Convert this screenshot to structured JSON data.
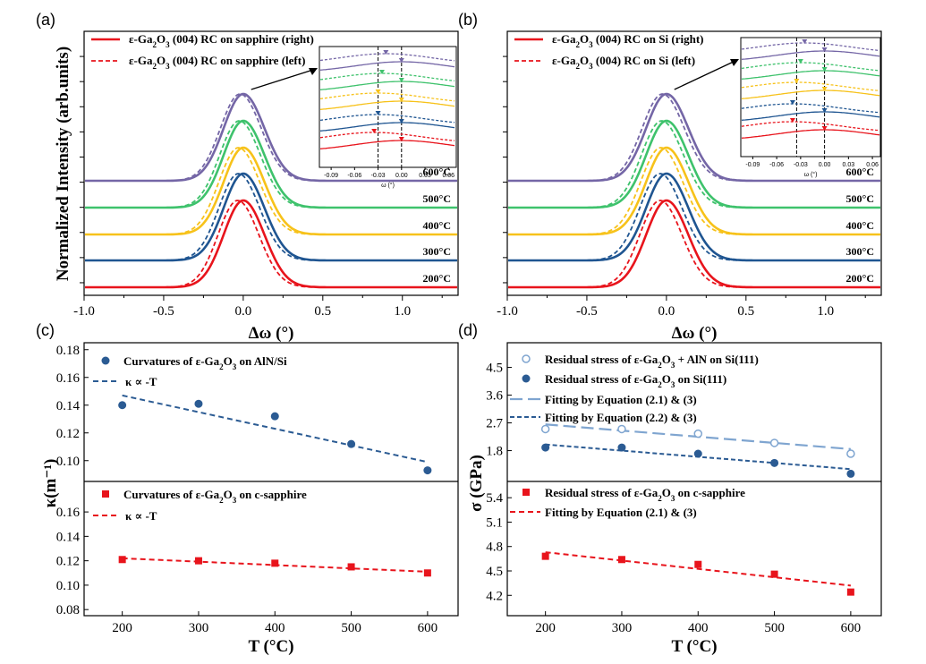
{
  "panel_labels": [
    "(a)",
    "(b)",
    "(c)",
    "(d)"
  ],
  "colors": {
    "200": "#e8141c",
    "300": "#1f5591",
    "400": "#f7c21a",
    "500": "#3ec26c",
    "600": "#7466a6",
    "blue_pts": "#2b5b93",
    "light_blue": "#7fa5d0",
    "red_pts": "#e8141c"
  },
  "chart_data": [
    {
      "panel": "(a)",
      "type": "line",
      "xlabel": "Δω (°)",
      "ylabel": "Normalized Intensity (arb.units)",
      "xlim": [
        -1.0,
        1.35
      ],
      "xticks": [
        "-1.0",
        "-0.5",
        "0.0",
        "0.5",
        "1.0"
      ],
      "legend": [
        "ε-Ga2O3 (004) RC on sapphire (right)",
        "ε-Ga2O3 (004) RC on sapphire (left)"
      ],
      "series_labels": [
        "200°C",
        "300°C",
        "400°C",
        "500°C",
        "600°C"
      ],
      "fwhm": 0.29,
      "left_shifts": [
        -0.035,
        -0.03,
        -0.03,
        -0.025,
        -0.02
      ],
      "inset": {
        "xlabel": "ω (°)",
        "xticks": [
          "-0.09",
          "-0.06",
          "-0.03",
          "0.00",
          "0.03",
          "0.06"
        ],
        "dashed_line_x": [
          -0.03,
          0.0
        ]
      }
    },
    {
      "panel": "(b)",
      "type": "line",
      "xlabel": "Δω (°)",
      "xlim": [
        -1.0,
        1.35
      ],
      "xticks": [
        "-1.0",
        "-0.5",
        "0.0",
        "0.5",
        "1.0"
      ],
      "legend": [
        "ε-Ga2O3 (004) RC on Si (right)",
        "ε-Ga2O3 (004) RC on Si (left)"
      ],
      "series_labels": [
        "200°C",
        "300°C",
        "400°C",
        "500°C",
        "600°C"
      ],
      "fwhm": 0.3,
      "left_shifts": [
        -0.04,
        -0.04,
        -0.035,
        -0.03,
        -0.025
      ],
      "inset": {
        "xlabel": "ω (°)",
        "xticks": [
          "-0.09",
          "-0.06",
          "-0.03",
          "0.00",
          "0.03",
          "0.06"
        ],
        "dashed_line_x": [
          -0.035,
          0.0
        ]
      }
    },
    {
      "panel": "(c)",
      "type": "scatter",
      "xlabel": "T (°C)",
      "ylabel": "κ(m⁻¹)",
      "xlim": [
        150,
        640
      ],
      "xticks": [
        200,
        300,
        400,
        500,
        600
      ],
      "top": {
        "ylim": [
          0.085,
          0.185
        ],
        "yticks": [
          "0.10",
          "0.12",
          "0.14",
          "0.16",
          "0.18"
        ],
        "legend": [
          "Curvatures of ε-Ga2O3 on AlN/Si",
          "κ ∝ -T"
        ],
        "points": {
          "x": [
            200,
            300,
            400,
            500,
            600
          ],
          "y": [
            0.14,
            0.141,
            0.132,
            0.112,
            0.093
          ]
        },
        "fit": {
          "x": [
            200,
            600
          ],
          "y": [
            0.147,
            0.099
          ]
        }
      },
      "bottom": {
        "ylim": [
          0.075,
          0.185
        ],
        "yticks": [
          "0.08",
          "0.10",
          "0.12",
          "0.14",
          "0.16"
        ],
        "legend": [
          "Curvatures of ε-Ga2O3 on c-sapphire",
          "κ ∝ -T"
        ],
        "points": {
          "x": [
            200,
            300,
            400,
            500,
            600
          ],
          "y": [
            0.121,
            0.12,
            0.118,
            0.115,
            0.11
          ]
        },
        "fit": {
          "x": [
            200,
            600
          ],
          "y": [
            0.122,
            0.111
          ]
        }
      }
    },
    {
      "panel": "(d)",
      "type": "scatter",
      "xlabel": "T (°C)",
      "ylabel": "σ (GPa)",
      "xlim": [
        150,
        640
      ],
      "xticks": [
        200,
        300,
        400,
        500,
        600
      ],
      "top": {
        "ylim": [
          0.8,
          5.3
        ],
        "yticks": [
          "1.8",
          "2.7",
          "3.6",
          "4.5"
        ],
        "legend": [
          "Residual stress of ε-Ga2O3 + AlN on Si(111)",
          "Residual stress of ε-Ga2O3 on Si(111)",
          "Fitting by Equation (2.1) & (3)",
          "Fitting by Equation (2.2) & (3)"
        ],
        "open_points": {
          "x": [
            200,
            300,
            400,
            500,
            600
          ],
          "y": [
            2.5,
            2.5,
            2.35,
            2.05,
            1.7
          ]
        },
        "filled_points": {
          "x": [
            200,
            300,
            400,
            500,
            600
          ],
          "y": [
            1.9,
            1.9,
            1.7,
            1.4,
            1.05
          ]
        },
        "fit_open": {
          "x": [
            200,
            600
          ],
          "y": [
            2.65,
            1.85
          ]
        },
        "fit_filled": {
          "x": [
            200,
            600
          ],
          "y": [
            2.0,
            1.2
          ]
        }
      },
      "bottom": {
        "ylim": [
          3.95,
          5.6
        ],
        "yticks": [
          "4.2",
          "4.5",
          "4.8",
          "5.1",
          "5.4"
        ],
        "legend": [
          "Residual stress of ε-Ga2O3 on c-sapphire",
          "Fitting by Equation (2.1) & (3)"
        ],
        "points": {
          "x": [
            200,
            300,
            400,
            500,
            600
          ],
          "y": [
            4.68,
            4.64,
            4.58,
            4.46,
            4.24
          ]
        },
        "fit": {
          "x": [
            200,
            600
          ],
          "y": [
            4.73,
            4.32
          ]
        }
      }
    }
  ]
}
